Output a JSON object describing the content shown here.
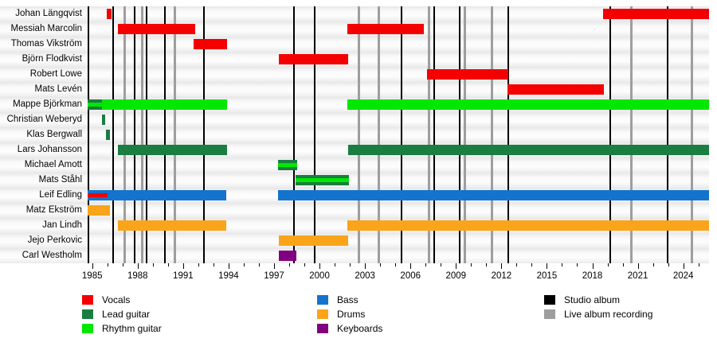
{
  "chart_data": {
    "type": "timeline",
    "title": "",
    "xlim": [
      1984.7,
      2025.7
    ],
    "axis": {
      "major_tick_labels": [
        "1985",
        "1988",
        "1991",
        "1994",
        "1997",
        "2000",
        "2003",
        "2006",
        "2009",
        "2012",
        "2015",
        "2018",
        "2021",
        "2024"
      ],
      "major_tick_start": 1985,
      "major_tick_step": 3,
      "minor_tick_step": 1
    },
    "colors": {
      "vocals": "#f40000",
      "lead_guitar": "#1a7d42",
      "rhythm_guitar": "#00e800",
      "bass": "#1473cd",
      "drums": "#faa41a",
      "keyboards": "#800080",
      "studio_album": "#000000",
      "live_album": "#9e9e9e"
    },
    "members": [
      {
        "name": "Johan Längqvist",
        "bars": [
          {
            "role": "vocals",
            "start": 1985.95,
            "end": 1986.28
          },
          {
            "role": "vocals",
            "start": 2018.7,
            "end": 2025.7
          }
        ]
      },
      {
        "name": "Messiah Marcolin",
        "bars": [
          {
            "role": "vocals",
            "start": 1986.7,
            "end": 1991.8
          },
          {
            "role": "vocals",
            "start": 2001.85,
            "end": 2006.9
          }
        ]
      },
      {
        "name": "Thomas Vikström",
        "bars": [
          {
            "role": "vocals",
            "start": 1991.7,
            "end": 1993.9
          }
        ]
      },
      {
        "name": "Björn Flodkvist",
        "bars": [
          {
            "role": "vocals",
            "start": 1997.3,
            "end": 2001.9
          }
        ]
      },
      {
        "name": "Robert Lowe",
        "bars": [
          {
            "role": "vocals",
            "start": 2007.1,
            "end": 2012.45
          }
        ]
      },
      {
        "name": "Mats Levén",
        "bars": [
          {
            "role": "vocals",
            "start": 2012.4,
            "end": 2018.75
          }
        ]
      },
      {
        "name": "Mappe Björkman",
        "bars": [
          {
            "role": "lead_guitar",
            "start": 1984.7,
            "end": 1985.65
          },
          {
            "role": "rhythm_guitar",
            "start": 1985.65,
            "end": 1993.9
          },
          {
            "role": "rhythm_guitar",
            "start": 2001.85,
            "end": 2025.7
          }
        ],
        "stripes": [
          {
            "role": "rhythm_guitar",
            "start": 1984.7,
            "end": 1985.65
          }
        ]
      },
      {
        "name": "Christian Weberyd",
        "bars": [
          {
            "role": "lead_guitar",
            "start": 1985.65,
            "end": 1985.88
          }
        ]
      },
      {
        "name": "Klas Bergwall",
        "bars": [
          {
            "role": "lead_guitar",
            "start": 1985.9,
            "end": 1986.17
          }
        ]
      },
      {
        "name": "Lars Johansson",
        "bars": [
          {
            "role": "lead_guitar",
            "start": 1986.7,
            "end": 1993.9
          },
          {
            "role": "lead_guitar",
            "start": 2001.9,
            "end": 2025.7
          }
        ]
      },
      {
        "name": "Michael Amott",
        "bars": [
          {
            "role": "lead_guitar",
            "start": 1997.27,
            "end": 1998.53
          }
        ],
        "stripes": [
          {
            "role": "rhythm_guitar",
            "start": 1997.27,
            "end": 1998.53
          }
        ]
      },
      {
        "name": "Mats Ståhl",
        "bars": [
          {
            "role": "lead_guitar",
            "start": 1998.42,
            "end": 2001.95
          }
        ],
        "stripes": [
          {
            "role": "rhythm_guitar",
            "start": 1998.42,
            "end": 2001.95
          }
        ]
      },
      {
        "name": "Leif Edling",
        "bars": [
          {
            "role": "bass",
            "start": 1984.7,
            "end": 1993.85
          },
          {
            "role": "bass",
            "start": 1997.27,
            "end": 2025.7
          }
        ],
        "stripes": [
          {
            "role": "vocals",
            "start": 1984.7,
            "end": 1986.0
          }
        ]
      },
      {
        "name": "Matz Ekström",
        "bars": [
          {
            "role": "drums",
            "start": 1984.7,
            "end": 1986.17
          }
        ]
      },
      {
        "name": "Jan Lindh",
        "bars": [
          {
            "role": "drums",
            "start": 1986.7,
            "end": 1993.85
          },
          {
            "role": "drums",
            "start": 2001.85,
            "end": 2025.7
          }
        ]
      },
      {
        "name": "Jejo Perkovic",
        "bars": [
          {
            "role": "drums",
            "start": 1997.3,
            "end": 2001.9
          }
        ]
      },
      {
        "name": "Carl Westholm",
        "bars": [
          {
            "role": "keyboards",
            "start": 1997.3,
            "end": 1998.45
          }
        ]
      }
    ],
    "albums": {
      "studio": [
        1986.4,
        1987.8,
        1988.6,
        1989.8,
        1992.4,
        1998.3,
        1999.7,
        2005.4,
        2007.55,
        2009.25,
        2012.45,
        2019.2,
        2022.95
      ],
      "live": [
        1987.15,
        1988.3,
        1990.45,
        2002.6,
        2003.9,
        2007.2,
        2009.6,
        2011.35,
        2020.55,
        2024.55
      ]
    },
    "legend": {
      "items": [
        {
          "label": "Vocals",
          "color_key": "vocals"
        },
        {
          "label": "Lead guitar",
          "color_key": "lead_guitar"
        },
        {
          "label": "Rhythm guitar",
          "color_key": "rhythm_guitar"
        },
        {
          "label": "Bass",
          "color_key": "bass"
        },
        {
          "label": "Drums",
          "color_key": "drums"
        },
        {
          "label": "Keyboards",
          "color_key": "keyboards"
        },
        {
          "label": "Studio album",
          "color_key": "studio_album"
        },
        {
          "label": "Live album recording",
          "color_key": "live_album"
        }
      ]
    }
  }
}
